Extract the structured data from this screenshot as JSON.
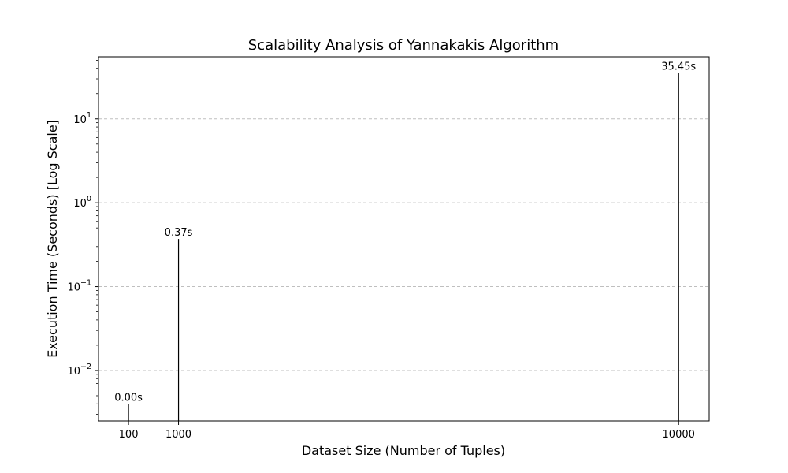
{
  "chart_data": {
    "type": "bar",
    "title": "Scalability Analysis of Yannakakis Algorithm",
    "xlabel": "Dataset Size (Number of Tuples)",
    "ylabel": "Execution Time (Seconds) [Log Scale]",
    "yscale": "log",
    "ylim": [
      0.0025,
      55
    ],
    "xlim": [
      -440,
      10550
    ],
    "grid": "y-major-dashed",
    "bar_color": "#000000",
    "x": [
      100,
      1000,
      10000
    ],
    "x_tick_labels": [
      "100",
      "1000",
      "10000"
    ],
    "values": [
      0.004,
      0.37,
      35.45
    ],
    "data_labels": [
      "0.00s",
      "0.37s",
      "35.45s"
    ],
    "y_ticks": [
      {
        "base": "10",
        "exp": "−2",
        "value": 0.01
      },
      {
        "base": "10",
        "exp": "−1",
        "value": 0.1
      },
      {
        "base": "10",
        "exp": "0",
        "value": 1
      },
      {
        "base": "10",
        "exp": "1",
        "value": 10
      }
    ]
  }
}
